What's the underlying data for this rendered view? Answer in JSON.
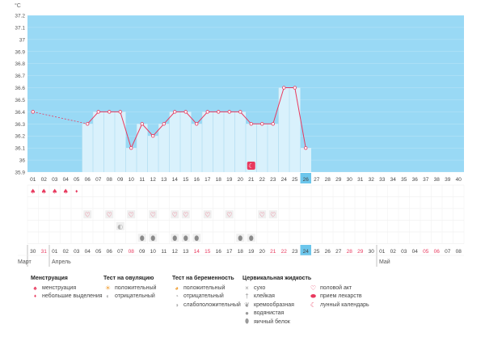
{
  "chart_data": {
    "type": "line",
    "unit": "°C",
    "y_ticks": [
      "35.9",
      "36",
      "36.1",
      "36.2",
      "36.3",
      "36.4",
      "36.5",
      "36.6",
      "36.7",
      "36.8",
      "36.9",
      "37",
      "37.1",
      "37.2"
    ],
    "ylim": [
      35.9,
      37.2
    ],
    "days": [
      "01",
      "02",
      "03",
      "04",
      "05",
      "06",
      "07",
      "08",
      "09",
      "10",
      "11",
      "12",
      "13",
      "14",
      "15",
      "16",
      "17",
      "18",
      "19",
      "20",
      "21",
      "22",
      "23",
      "24",
      "25",
      "26",
      "27",
      "28",
      "29",
      "30",
      "31",
      "32",
      "33",
      "34",
      "35",
      "36",
      "37",
      "38",
      "39",
      "40"
    ],
    "current_day": "26",
    "temperatures": [
      36.4,
      null,
      null,
      null,
      null,
      36.3,
      36.4,
      36.4,
      36.4,
      36.1,
      36.3,
      36.2,
      36.3,
      36.4,
      36.4,
      36.3,
      36.4,
      36.4,
      36.4,
      36.4,
      36.3,
      36.3,
      36.3,
      36.6,
      36.6,
      36.1,
      null,
      null,
      null,
      null,
      null,
      null,
      null,
      null,
      null,
      null,
      null,
      null,
      null,
      null
    ],
    "dashed_segment": [
      "01",
      "06"
    ],
    "shaded_range": [
      "06",
      "26"
    ],
    "dates": [
      "30",
      "31",
      "01",
      "02",
      "03",
      "04",
      "05",
      "06",
      "07",
      "08",
      "09",
      "10",
      "11",
      "12",
      "13",
      "14",
      "15",
      "16",
      "17",
      "18",
      "19",
      "20",
      "21",
      "22",
      "23",
      "24",
      "25",
      "26",
      "27",
      "28",
      "29",
      "30",
      "01",
      "02",
      "03",
      "04",
      "05",
      "06",
      "07",
      "08"
    ],
    "red_dates_index": [
      1,
      9,
      15,
      16,
      22,
      23,
      29,
      30,
      36,
      37
    ],
    "current_date": "24",
    "month_labels": [
      {
        "label": "Март",
        "at": 0
      },
      {
        "label": "Апрель",
        "at": 2
      },
      {
        "label": "Май",
        "at": 32
      }
    ],
    "menstruation_days": [
      "01",
      "02",
      "03",
      "04"
    ],
    "spotting_days": [
      "05"
    ],
    "intercourse_days": [
      "06",
      "08",
      "10",
      "12",
      "14",
      "15",
      "17",
      "19",
      "22",
      "23"
    ],
    "ovulation_negative_days": [
      "09"
    ],
    "egg_white_days": [
      "11",
      "12",
      "14",
      "15",
      "16",
      "20",
      "21"
    ],
    "moon_day": "21"
  },
  "legend": {
    "menstruation": {
      "title": "Менструация",
      "items": [
        "менструация",
        "небольшие выделения"
      ]
    },
    "ovulation": {
      "title": "Тест на овуляцию",
      "items": [
        "положительный",
        "отрицательный"
      ]
    },
    "pregnancy": {
      "title": "Тест на беременность",
      "items": [
        "положительный",
        "отрицательный",
        "слабоположительный"
      ]
    },
    "cervical": {
      "title": "Цервикальная жидкость",
      "items": [
        "сухо",
        "клейкая",
        "кремообразная",
        "водянистая",
        "яичный белок"
      ]
    },
    "other": {
      "items": [
        "половой акт",
        "прием лекарств",
        "лунный календарь"
      ]
    }
  },
  "colors": {
    "background": "#99d9f5",
    "shaded": "#d9f1fc",
    "line": "#e8395e",
    "current": "#6cc6ec",
    "red_text": "#e8395e"
  }
}
